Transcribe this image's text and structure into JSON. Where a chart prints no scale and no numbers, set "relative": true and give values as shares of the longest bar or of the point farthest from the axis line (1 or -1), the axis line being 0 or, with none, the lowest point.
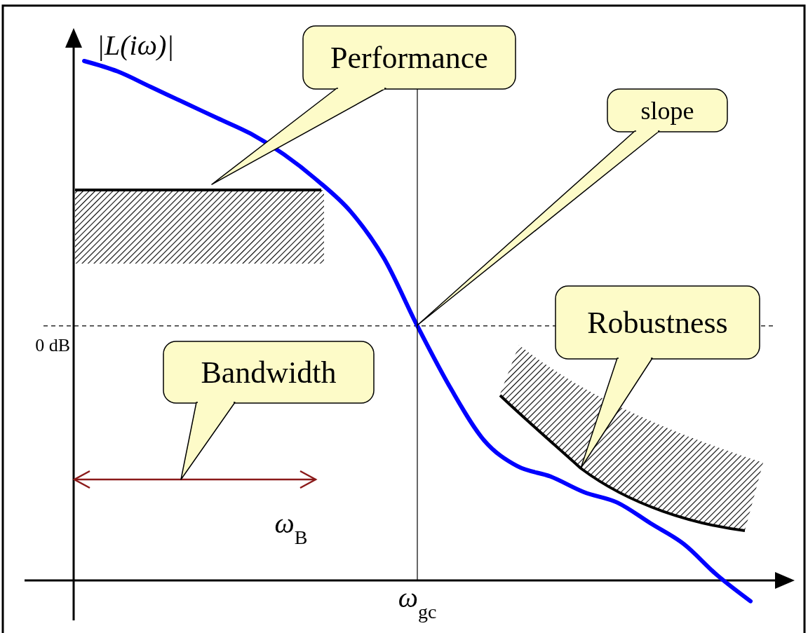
{
  "chart_data": {
    "type": "line",
    "relative": true,
    "ylabel": "|L(iω)|",
    "categories": [
      null,
      null,
      null,
      null,
      null,
      null,
      null,
      null,
      null,
      null,
      null,
      null,
      null,
      null,
      null,
      null,
      null,
      null,
      null,
      null,
      null
    ],
    "series": [
      {
        "color": "#0000ff",
        "values": [
          1.0,
          0.98,
          0.95,
          0.92,
          0.89,
          0.86,
          0.82,
          0.77,
          0.71,
          0.62,
          0.49,
          0.37,
          0.27,
          0.22,
          0.2,
          0.17,
          0.15,
          0.11,
          0.07,
          0.01,
          -0.04
        ]
      }
    ],
    "ref_lines": [
      {
        "axis": "y",
        "value": 0.49,
        "label": "0 dB",
        "line_style": "dashed"
      }
    ],
    "annotations": [
      "Performance",
      "slope",
      "Robustness",
      "Bandwidth",
      "ω$_{B}$",
      "ω$_{gc}$"
    ]
  }
}
